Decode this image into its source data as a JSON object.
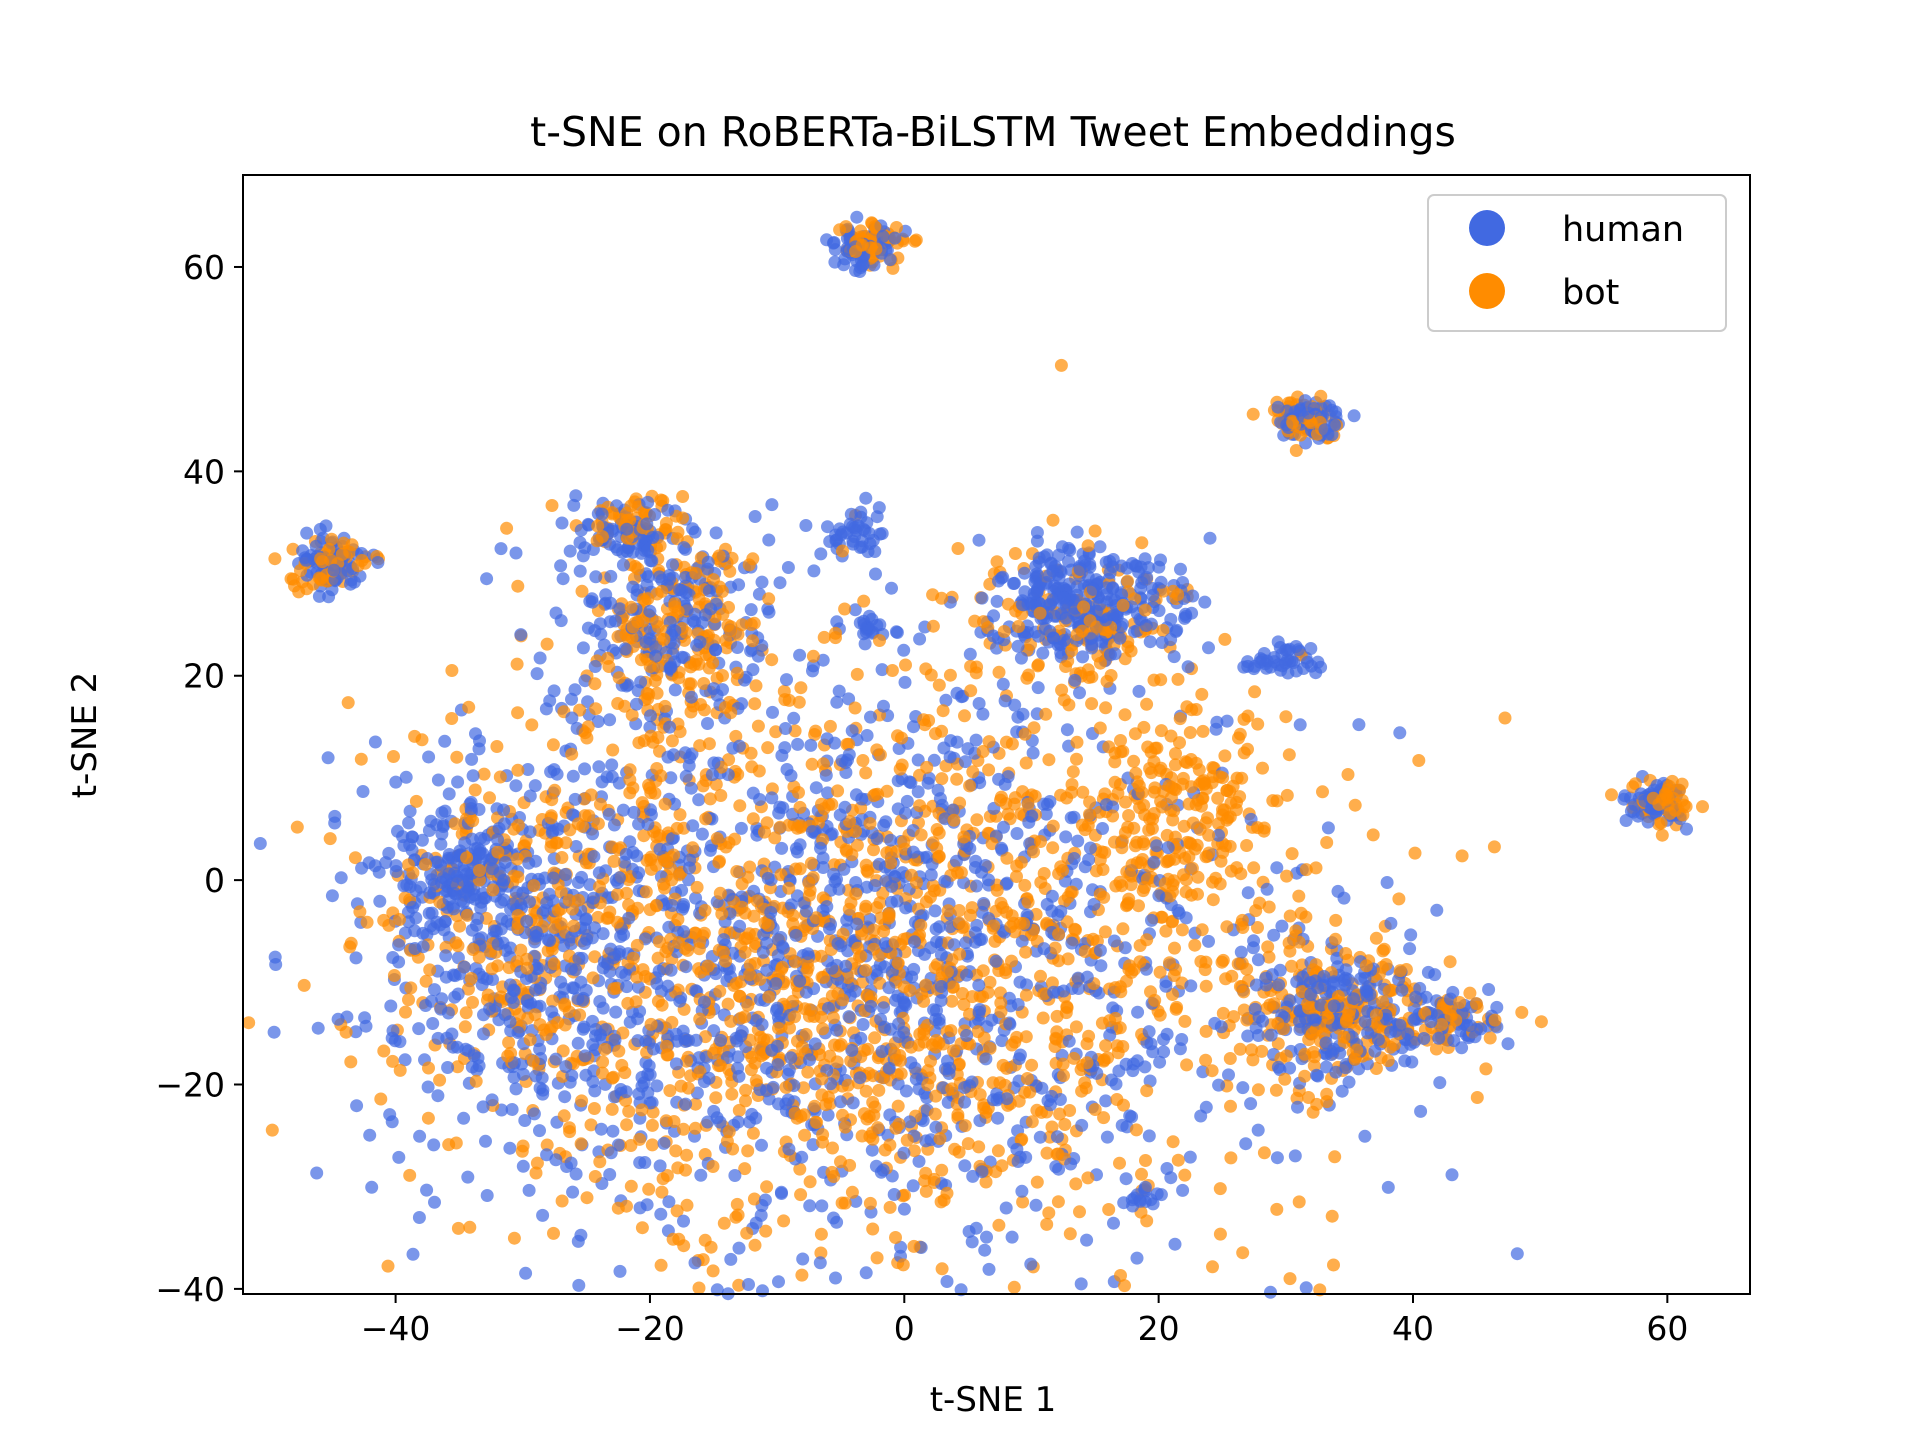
{
  "chart_data": {
    "type": "scatter",
    "title": "t-SNE on RoBERTa-BiLSTM Tweet Embeddings",
    "xlabel": "t-SNE 1",
    "ylabel": "t-SNE 2",
    "xlim": [
      -52,
      66.5
    ],
    "ylim": [
      -40.5,
      69
    ],
    "xticks": [
      -40,
      -20,
      0,
      20,
      40,
      60
    ],
    "yticks": [
      -40,
      -20,
      0,
      20,
      40,
      60
    ],
    "xtick_labels": [
      "−40",
      "−20",
      "0",
      "20",
      "40",
      "60"
    ],
    "ytick_labels": [
      "−40",
      "−20",
      "0",
      "20",
      "40",
      "60"
    ],
    "grid": false,
    "legend_position": "top-right",
    "marker_alpha": 0.7,
    "series": [
      {
        "name": "human",
        "color": "#4169E1",
        "clusters": [
          {
            "cx": -5,
            "cy": -8,
            "sx": 17,
            "sy": 15,
            "n": 1400,
            "seed": 11
          },
          {
            "cx": -30,
            "cy": -5,
            "sx": 6,
            "sy": 9,
            "n": 300,
            "seed": 12
          },
          {
            "cx": -35,
            "cy": 0,
            "sx": 2,
            "sy": 3,
            "n": 120,
            "seed": 13
          },
          {
            "cx": -45,
            "cy": 31,
            "sx": 1.5,
            "sy": 1.2,
            "n": 80,
            "seed": 14
          },
          {
            "cx": -3.5,
            "cy": 62,
            "sx": 1.4,
            "sy": 1.2,
            "n": 70,
            "seed": 15
          },
          {
            "cx": 32,
            "cy": 45,
            "sx": 1.3,
            "sy": 1.0,
            "n": 70,
            "seed": 16
          },
          {
            "cx": 59,
            "cy": 7.5,
            "sx": 1.2,
            "sy": 1.1,
            "n": 60,
            "seed": 17
          },
          {
            "cx": 14,
            "cy": 27,
            "sx": 3.5,
            "sy": 3.0,
            "n": 300,
            "seed": 18
          },
          {
            "cx": 29.5,
            "cy": 21.5,
            "sx": 1.2,
            "sy": 0.7,
            "n": 40,
            "seed": 19
          },
          {
            "cx": -19,
            "cy": 26,
            "sx": 4,
            "sy": 5,
            "n": 200,
            "seed": 20
          },
          {
            "cx": -22,
            "cy": 34,
            "sx": 2,
            "sy": 1.4,
            "n": 60,
            "seed": 21
          },
          {
            "cx": -4,
            "cy": 34,
            "sx": 1.2,
            "sy": 1.0,
            "n": 40,
            "seed": 22
          },
          {
            "cx": -3,
            "cy": 24.5,
            "sx": 1.2,
            "sy": 0.6,
            "n": 20,
            "seed": 23
          },
          {
            "cx": 34,
            "cy": -13,
            "sx": 3.5,
            "sy": 3,
            "n": 200,
            "seed": 24
          },
          {
            "cx": 43,
            "cy": -14,
            "sx": 2,
            "sy": 1.3,
            "n": 50,
            "seed": 25
          },
          {
            "cx": 19,
            "cy": -31,
            "sx": 0.8,
            "sy": 0.8,
            "n": 15,
            "seed": 26
          }
        ]
      },
      {
        "name": "bot",
        "color": "#FF8C00",
        "clusters": [
          {
            "cx": -3,
            "cy": -8,
            "sx": 17,
            "sy": 15,
            "n": 1600,
            "seed": 31
          },
          {
            "cx": -30,
            "cy": -6,
            "sx": 6,
            "sy": 9,
            "n": 200,
            "seed": 32
          },
          {
            "cx": -45,
            "cy": 31,
            "sx": 1.5,
            "sy": 1.2,
            "n": 60,
            "seed": 33
          },
          {
            "cx": -2.5,
            "cy": 62.5,
            "sx": 1.3,
            "sy": 1.0,
            "n": 60,
            "seed": 34
          },
          {
            "cx": 31.5,
            "cy": 45,
            "sx": 1.3,
            "sy": 1.0,
            "n": 60,
            "seed": 35
          },
          {
            "cx": 59.5,
            "cy": 7.5,
            "sx": 1.2,
            "sy": 1.1,
            "n": 50,
            "seed": 36
          },
          {
            "cx": 14,
            "cy": 25,
            "sx": 4,
            "sy": 4,
            "n": 120,
            "seed": 37
          },
          {
            "cx": -18,
            "cy": 24,
            "sx": 4,
            "sy": 5,
            "n": 180,
            "seed": 38
          },
          {
            "cx": -21,
            "cy": 35,
            "sx": 2,
            "sy": 1.4,
            "n": 50,
            "seed": 39
          },
          {
            "cx": 34,
            "cy": -13,
            "sx": 3.5,
            "sy": 3,
            "n": 200,
            "seed": 40
          },
          {
            "cx": 43,
            "cy": -14,
            "sx": 2,
            "sy": 1.3,
            "n": 40,
            "seed": 41
          },
          {
            "cx": 22,
            "cy": 5,
            "sx": 4,
            "sy": 6,
            "n": 200,
            "seed": 42
          }
        ]
      }
    ]
  }
}
